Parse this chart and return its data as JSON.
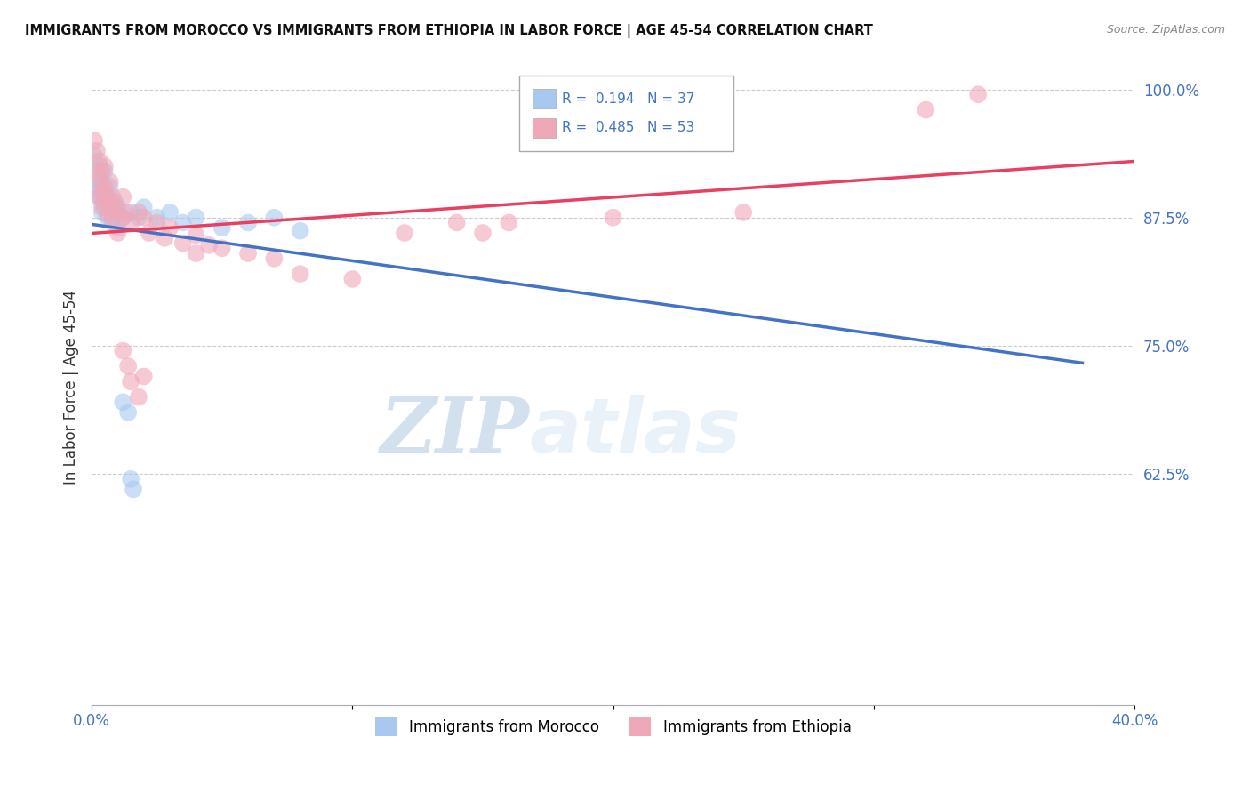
{
  "title": "IMMIGRANTS FROM MOROCCO VS IMMIGRANTS FROM ETHIOPIA IN LABOR FORCE | AGE 45-54 CORRELATION CHART",
  "source": "Source: ZipAtlas.com",
  "ylabel": "In Labor Force | Age 45-54",
  "xlim": [
    0.0,
    0.4
  ],
  "ylim": [
    0.4,
    1.02
  ],
  "xticks": [
    0.0,
    0.1,
    0.2,
    0.3,
    0.4
  ],
  "xticklabels": [
    "0.0%",
    "",
    "",
    "",
    "40.0%"
  ],
  "yticks": [
    0.625,
    0.75,
    0.875,
    1.0
  ],
  "yticklabels": [
    "62.5%",
    "75.0%",
    "87.5%",
    "100.0%"
  ],
  "morocco_color": "#a8c8f0",
  "ethiopia_color": "#f0a8b8",
  "morocco_line_color": "#4472c4",
  "ethiopia_line_color": "#e84060",
  "morocco_r": 0.194,
  "morocco_n": 37,
  "ethiopia_r": 0.485,
  "ethiopia_n": 53,
  "watermark_zip": "ZIP",
  "watermark_atlas": "atlas",
  "legend_label_morocco": "Immigrants from Morocco",
  "legend_label_ethiopia": "Immigrants from Ethiopia",
  "morocco_scatter": [
    [
      0.001,
      0.935
    ],
    [
      0.002,
      0.915
    ],
    [
      0.002,
      0.9
    ],
    [
      0.003,
      0.925
    ],
    [
      0.003,
      0.895
    ],
    [
      0.003,
      0.905
    ],
    [
      0.004,
      0.91
    ],
    [
      0.004,
      0.89
    ],
    [
      0.004,
      0.88
    ],
    [
      0.005,
      0.92
    ],
    [
      0.005,
      0.9
    ],
    [
      0.005,
      0.885
    ],
    [
      0.006,
      0.895
    ],
    [
      0.006,
      0.875
    ],
    [
      0.007,
      0.905
    ],
    [
      0.007,
      0.885
    ],
    [
      0.008,
      0.88
    ],
    [
      0.008,
      0.87
    ],
    [
      0.009,
      0.89
    ],
    [
      0.01,
      0.885
    ],
    [
      0.01,
      0.865
    ],
    [
      0.012,
      0.875
    ],
    [
      0.015,
      0.88
    ],
    [
      0.018,
      0.875
    ],
    [
      0.02,
      0.885
    ],
    [
      0.025,
      0.875
    ],
    [
      0.03,
      0.88
    ],
    [
      0.035,
      0.87
    ],
    [
      0.04,
      0.875
    ],
    [
      0.05,
      0.865
    ],
    [
      0.06,
      0.87
    ],
    [
      0.07,
      0.875
    ],
    [
      0.08,
      0.862
    ],
    [
      0.012,
      0.695
    ],
    [
      0.014,
      0.685
    ],
    [
      0.015,
      0.62
    ],
    [
      0.016,
      0.61
    ]
  ],
  "ethiopia_scatter": [
    [
      0.001,
      0.95
    ],
    [
      0.002,
      0.94
    ],
    [
      0.002,
      0.92
    ],
    [
      0.003,
      0.93
    ],
    [
      0.003,
      0.91
    ],
    [
      0.003,
      0.895
    ],
    [
      0.004,
      0.92
    ],
    [
      0.004,
      0.9
    ],
    [
      0.004,
      0.885
    ],
    [
      0.005,
      0.925
    ],
    [
      0.005,
      0.905
    ],
    [
      0.005,
      0.89
    ],
    [
      0.006,
      0.895
    ],
    [
      0.006,
      0.878
    ],
    [
      0.007,
      0.91
    ],
    [
      0.007,
      0.89
    ],
    [
      0.008,
      0.895
    ],
    [
      0.008,
      0.875
    ],
    [
      0.009,
      0.885
    ],
    [
      0.01,
      0.88
    ],
    [
      0.01,
      0.86
    ],
    [
      0.012,
      0.895
    ],
    [
      0.012,
      0.875
    ],
    [
      0.013,
      0.88
    ],
    [
      0.015,
      0.87
    ],
    [
      0.018,
      0.88
    ],
    [
      0.02,
      0.875
    ],
    [
      0.022,
      0.86
    ],
    [
      0.025,
      0.87
    ],
    [
      0.028,
      0.855
    ],
    [
      0.03,
      0.865
    ],
    [
      0.035,
      0.85
    ],
    [
      0.04,
      0.858
    ],
    [
      0.04,
      0.84
    ],
    [
      0.045,
      0.848
    ],
    [
      0.05,
      0.845
    ],
    [
      0.06,
      0.84
    ],
    [
      0.07,
      0.835
    ],
    [
      0.08,
      0.82
    ],
    [
      0.1,
      0.815
    ],
    [
      0.12,
      0.86
    ],
    [
      0.14,
      0.87
    ],
    [
      0.15,
      0.86
    ],
    [
      0.16,
      0.87
    ],
    [
      0.2,
      0.875
    ],
    [
      0.25,
      0.88
    ],
    [
      0.32,
      0.98
    ],
    [
      0.34,
      0.995
    ],
    [
      0.012,
      0.745
    ],
    [
      0.014,
      0.73
    ],
    [
      0.015,
      0.715
    ],
    [
      0.018,
      0.7
    ],
    [
      0.02,
      0.72
    ]
  ]
}
